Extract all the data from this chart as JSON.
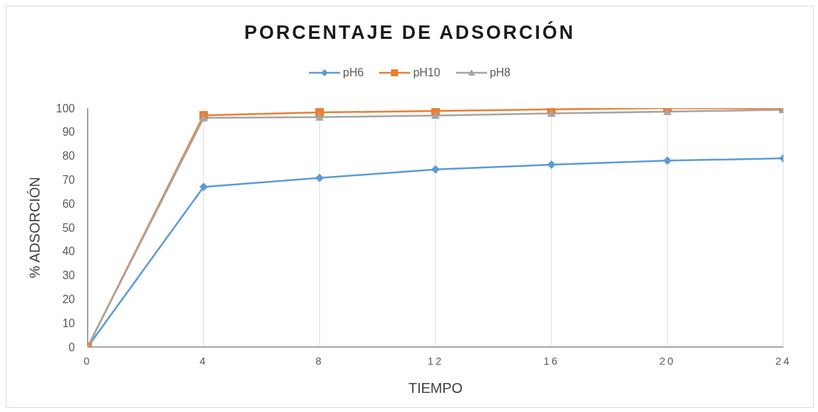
{
  "chart_data": {
    "type": "line",
    "title": "PORCENTAJE DE ADSORCIÓN",
    "xlabel": "TIEMPO",
    "ylabel": "% ADSORCIÓN",
    "x": [
      0,
      4,
      8,
      12,
      16,
      20,
      24
    ],
    "series": [
      {
        "name": "pH6",
        "color": "#5b9bd5",
        "marker": "diamond",
        "values": [
          0,
          67,
          70.8,
          74.3,
          76.3,
          78,
          79
        ]
      },
      {
        "name": "pH10",
        "color": "#ed7d31",
        "marker": "square",
        "values": [
          0,
          97,
          98.2,
          98.8,
          99.5,
          100,
          99.8
        ]
      },
      {
        "name": "pH8",
        "color": "#a5a5a5",
        "marker": "triangle",
        "values": [
          0,
          95.9,
          96.2,
          96.9,
          97.8,
          98.5,
          99.3
        ]
      }
    ],
    "xlim": [
      0,
      24
    ],
    "xticks": [
      0,
      4,
      8,
      12,
      16,
      20,
      24
    ],
    "ylim": [
      0,
      100
    ],
    "yticks": [
      0,
      10,
      20,
      30,
      40,
      50,
      60,
      70,
      80,
      90,
      100
    ],
    "grid": "x",
    "legend": "top"
  }
}
